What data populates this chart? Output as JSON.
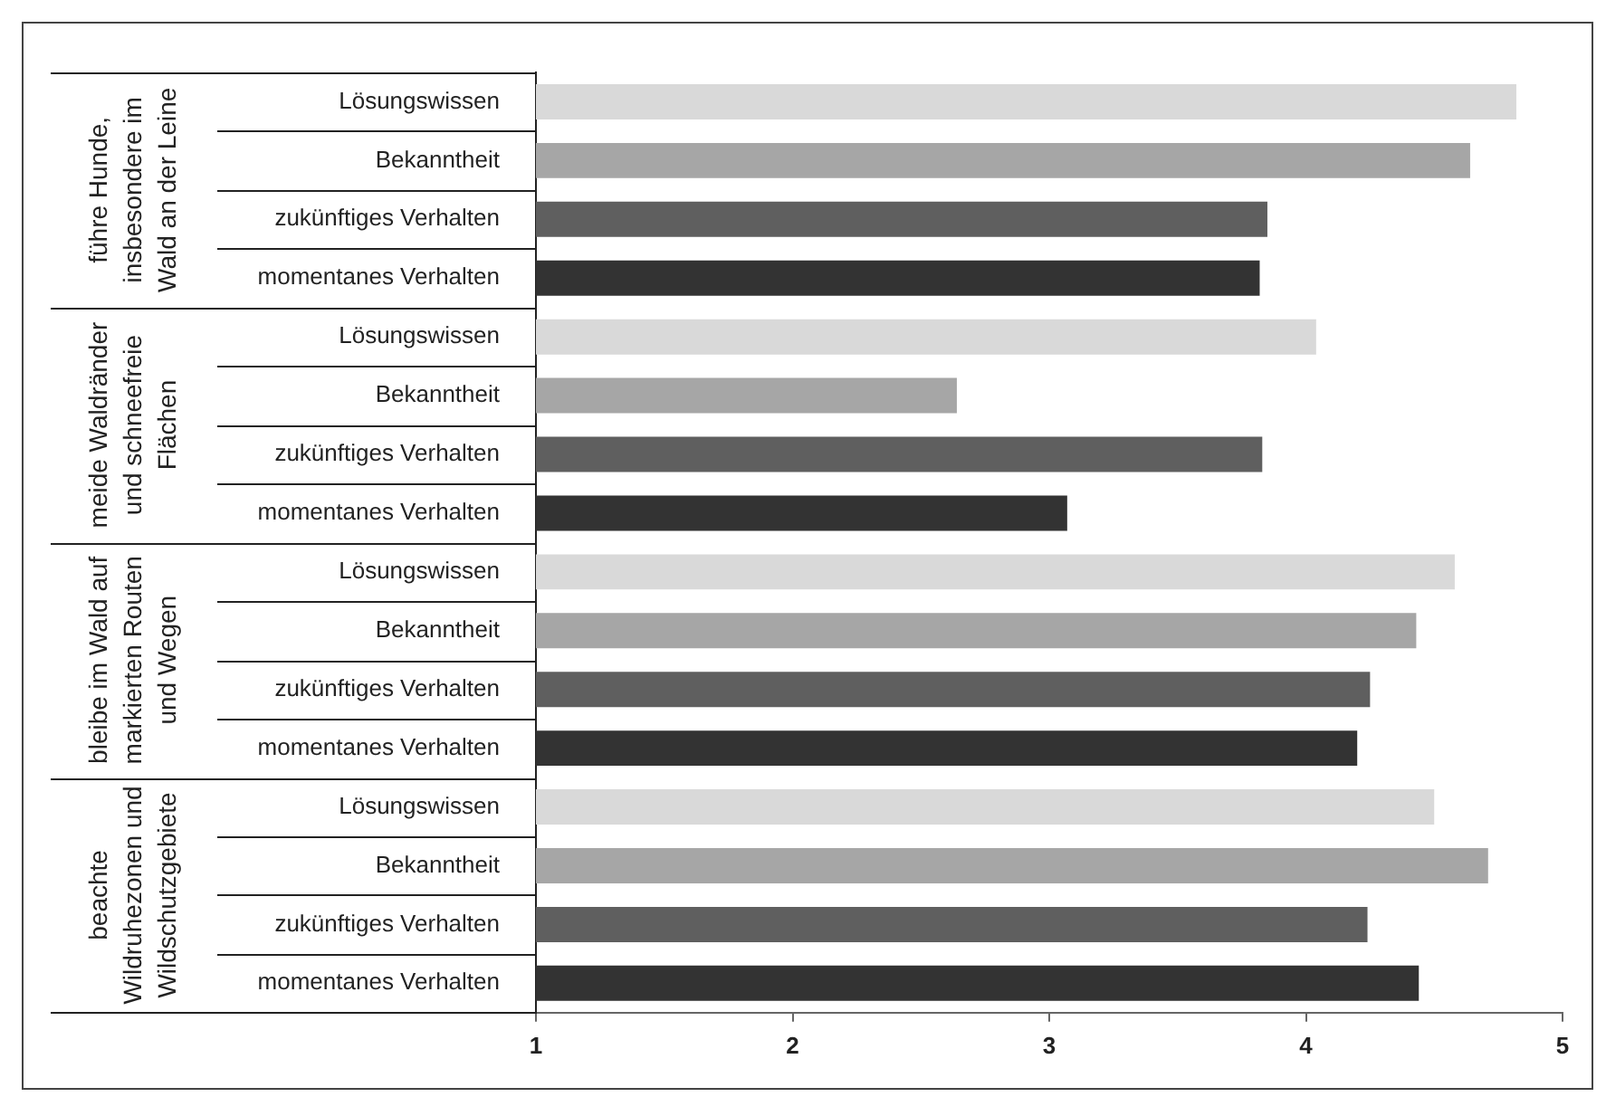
{
  "chart_data": {
    "type": "bar",
    "orientation": "horizontal",
    "categories": [
      "Lösungswissen",
      "Bekanntheit",
      "zukünftiges Verhalten",
      "momentanes Verhalten",
      "Lösungswissen",
      "Bekanntheit",
      "zukünftiges Verhalten",
      "momentanes Verhalten",
      "Lösungswissen",
      "Bekanntheit",
      "zukünftiges Verhalten",
      "momentanes Verhalten",
      "Lösungswissen",
      "Bekanntheit",
      "zukünftiges Verhalten",
      "momentanes Verhalten"
    ],
    "values": [
      4.82,
      4.64,
      3.85,
      3.82,
      4.04,
      2.64,
      3.83,
      3.07,
      4.58,
      4.43,
      4.25,
      4.2,
      4.5,
      4.71,
      4.24,
      4.44
    ],
    "colors": [
      "#d9d9d9",
      "#a6a6a6",
      "#5f5f5f",
      "#333333",
      "#d9d9d9",
      "#a6a6a6",
      "#5f5f5f",
      "#333333",
      "#d9d9d9",
      "#a6a6a6",
      "#5f5f5f",
      "#333333",
      "#d9d9d9",
      "#a6a6a6",
      "#5f5f5f",
      "#333333"
    ],
    "xlim": [
      1,
      5
    ],
    "xticks": [
      1,
      2,
      3,
      4,
      5
    ],
    "grid": false,
    "legend": false,
    "annotations": [
      "führe Hunde, insbesondere im Wald an der Leine",
      "meide Waldränder und schneefreie Flächen",
      "bleibe im Wald auf markierten Routen und Wegen",
      "beachte Wildruhezonen und Wildschutzgebiete"
    ]
  }
}
